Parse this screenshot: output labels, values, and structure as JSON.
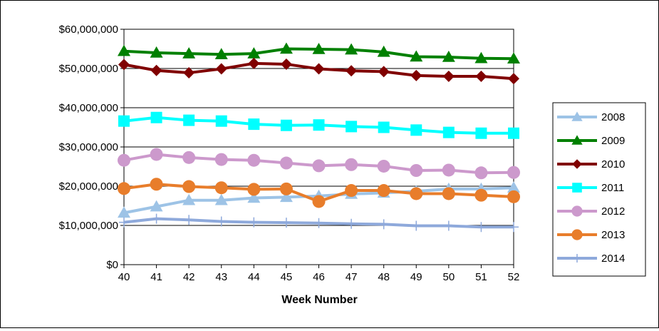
{
  "chart_data": {
    "type": "line",
    "title": "",
    "xlabel": "Week Number",
    "ylabel": "",
    "categories": [
      "40",
      "41",
      "42",
      "43",
      "44",
      "45",
      "46",
      "47",
      "48",
      "49",
      "50",
      "51",
      "52"
    ],
    "y_ticks": [
      "$0",
      "$10,000,000",
      "$20,000,000",
      "$30,000,000",
      "$40,000,000",
      "$50,000,000",
      "$60,000,000"
    ],
    "ylim": [
      0,
      60000000
    ],
    "grid": true,
    "legend_position": "right",
    "series": [
      {
        "name": "2008",
        "color": "#9DC3E6",
        "marker": "triangle",
        "values": [
          13200000,
          14800000,
          16400000,
          16400000,
          17000000,
          17200000,
          17500000,
          18000000,
          18300000,
          18700000,
          19300000,
          19300000,
          19600000
        ]
      },
      {
        "name": "2009",
        "color": "#008000",
        "marker": "triangle",
        "values": [
          54400000,
          54000000,
          53800000,
          53600000,
          53800000,
          55000000,
          54900000,
          54800000,
          54200000,
          53000000,
          52900000,
          52600000,
          52500000
        ]
      },
      {
        "name": "2010",
        "color": "#800000",
        "marker": "diamond",
        "values": [
          51000000,
          49500000,
          48900000,
          49900000,
          51300000,
          51100000,
          49900000,
          49400000,
          49200000,
          48200000,
          48000000,
          48000000,
          47400000
        ]
      },
      {
        "name": "2011",
        "color": "#00FFFF",
        "marker": "square",
        "values": [
          36600000,
          37500000,
          36800000,
          36600000,
          35800000,
          35500000,
          35600000,
          35200000,
          35000000,
          34300000,
          33700000,
          33500000,
          33500000
        ]
      },
      {
        "name": "2012",
        "color": "#CC99CC",
        "marker": "circle",
        "values": [
          26600000,
          28100000,
          27300000,
          26800000,
          26600000,
          25900000,
          25200000,
          25500000,
          25100000,
          24000000,
          24100000,
          23400000,
          23500000
        ]
      },
      {
        "name": "2013",
        "color": "#E87D2B",
        "marker": "circle",
        "values": [
          19400000,
          20500000,
          19900000,
          19600000,
          19200000,
          19300000,
          16100000,
          18900000,
          18900000,
          18100000,
          18100000,
          17700000,
          17300000
        ]
      },
      {
        "name": "2014",
        "color": "#8EA9DB",
        "marker": "plus",
        "values": [
          10800000,
          11700000,
          11400000,
          11000000,
          10800000,
          10700000,
          10600000,
          10400000,
          10300000,
          9900000,
          9900000,
          9600000,
          9600000
        ]
      }
    ]
  }
}
